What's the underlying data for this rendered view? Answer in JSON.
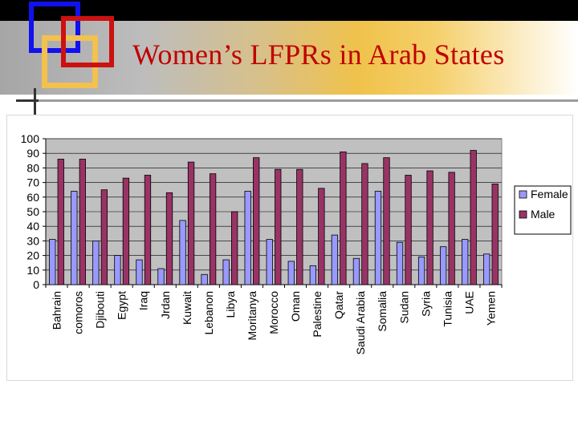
{
  "slide": {
    "title": "Women’s LFPRs in Arab States"
  },
  "colors": {
    "female": "#9999ff",
    "male": "#993366",
    "plot_bg": "#c0c0c0",
    "title": "#c00000"
  },
  "chart_data": {
    "type": "bar",
    "title": "",
    "xlabel": "",
    "ylabel": "",
    "ylim": [
      0,
      100
    ],
    "yticks": [
      0,
      10,
      20,
      30,
      40,
      50,
      60,
      70,
      80,
      90,
      100
    ],
    "grid": true,
    "legend": "right",
    "categories": [
      "Bahrain",
      "comoros",
      "Djibouti",
      "Egypt",
      "Iraq",
      "Jrdan",
      "Kuwait",
      "Lebanon",
      "Libya",
      "Moritanya",
      "Morocco",
      "Oman",
      "Palestine",
      "Qatar",
      "Saudi Arabia",
      "Somalia",
      "Sudan",
      "Syria",
      "Tunisia",
      "UAE",
      "Yemen"
    ],
    "series": [
      {
        "name": "Female",
        "values": [
          31,
          64,
          30,
          20,
          17,
          11,
          44,
          7,
          17,
          64,
          31,
          16,
          13,
          34,
          18,
          64,
          29,
          19,
          26,
          31,
          21
        ]
      },
      {
        "name": "Male",
        "values": [
          86,
          86,
          65,
          73,
          75,
          63,
          84,
          76,
          50,
          87,
          79,
          79,
          66,
          91,
          83,
          87,
          75,
          78,
          77,
          92,
          69
        ]
      }
    ]
  }
}
